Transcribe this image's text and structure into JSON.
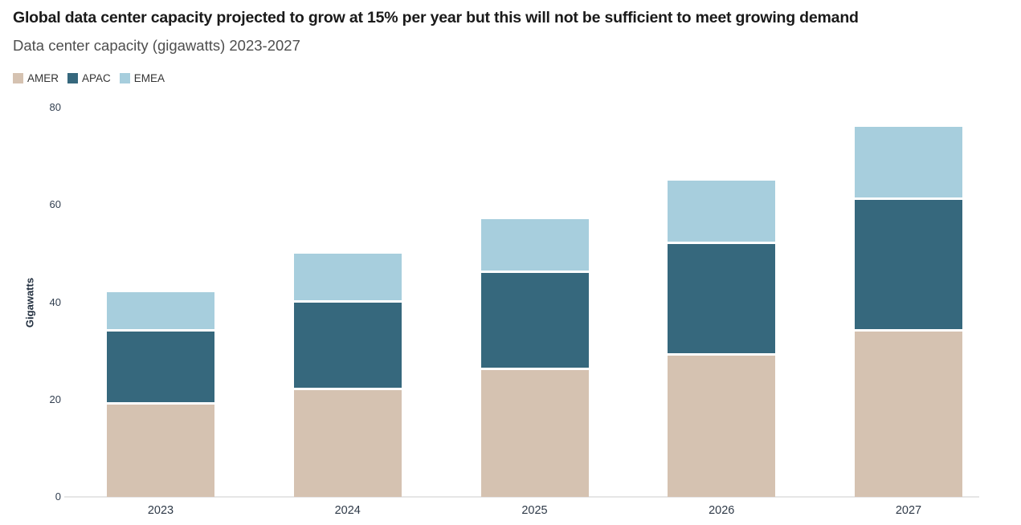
{
  "header": {
    "title": "Global data center capacity projected to grow at 15% per year but this will not be sufficient to meet growing demand",
    "subtitle": "Data center capacity (gigawatts) 2023-2027"
  },
  "legend": [
    {
      "label": "AMER",
      "color": "#d5c2b1"
    },
    {
      "label": "APAC",
      "color": "#36687d"
    },
    {
      "label": "EMEA",
      "color": "#a7cedd"
    }
  ],
  "chart_data": {
    "type": "bar",
    "stacked": true,
    "title": "Global data center capacity projected to grow at 15% per year but this will not be sufficient to meet growing demand",
    "subtitle": "Data center capacity (gigawatts) 2023-2027",
    "categories": [
      "2023",
      "2024",
      "2025",
      "2026",
      "2027"
    ],
    "series": [
      {
        "name": "AMER",
        "color": "#d5c2b1",
        "values": [
          19,
          22,
          26,
          29,
          34
        ]
      },
      {
        "name": "APAC",
        "color": "#36687d",
        "values": [
          15,
          18,
          20,
          23,
          27
        ]
      },
      {
        "name": "EMEA",
        "color": "#a7cedd",
        "values": [
          8,
          10,
          11,
          13,
          15
        ]
      }
    ],
    "totals": [
      42,
      50,
      57,
      65,
      76
    ],
    "xlabel": "",
    "ylabel": "Gigawatts",
    "ylim": [
      0,
      80
    ],
    "yticks": [
      0,
      20,
      40,
      60,
      80
    ],
    "legend_position": "top-left",
    "grid": false,
    "separator_color": "#ffffff",
    "axis_line_color": "#e6e6e6"
  }
}
